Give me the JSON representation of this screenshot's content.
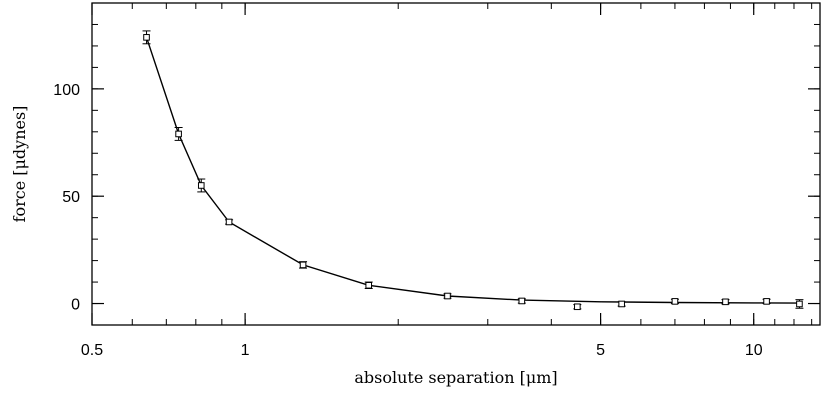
{
  "chart_data": {
    "type": "scatter",
    "title": "",
    "xlabel": "absolute separation [μm]",
    "ylabel": "force [μdynes]",
    "x_scale": "log",
    "xlim": [
      0.5,
      13.5
    ],
    "ylim": [
      -10,
      140
    ],
    "grid": false,
    "legend": "none",
    "colors": {
      "marker": "#000000",
      "line": "#000000"
    },
    "x_ticks": [
      0.5,
      1,
      5,
      10
    ],
    "x_tick_labels": [
      "0.5",
      "1",
      "5",
      "10"
    ],
    "y_ticks": [
      0,
      50,
      100
    ],
    "y_tick_labels": [
      "0",
      "50",
      "100"
    ],
    "series": [
      {
        "marker": "open-square",
        "error_bars": true,
        "points": [
          {
            "x": 0.64,
            "y": 124,
            "err": 3
          },
          {
            "x": 0.74,
            "y": 79,
            "err": 3
          },
          {
            "x": 0.82,
            "y": 55,
            "err": 3
          },
          {
            "x": 0.93,
            "y": 38,
            "err": 1
          },
          {
            "x": 1.3,
            "y": 18,
            "err": 1.5
          },
          {
            "x": 1.75,
            "y": 8.5,
            "err": 1.5
          },
          {
            "x": 2.5,
            "y": 3.5,
            "err": 1
          },
          {
            "x": 3.5,
            "y": 1.2,
            "err": 1
          },
          {
            "x": 4.5,
            "y": -1.5,
            "err": 1
          },
          {
            "x": 5.5,
            "y": -0.2,
            "err": 1
          },
          {
            "x": 7.0,
            "y": 1,
            "err": 1
          },
          {
            "x": 8.8,
            "y": 0.8,
            "err": 1
          },
          {
            "x": 10.6,
            "y": 1,
            "err": 1
          },
          {
            "x": 12.3,
            "y": -0.2,
            "err": 2
          }
        ]
      },
      {
        "type": "line",
        "points": [
          {
            "x": 0.64,
            "y": 124
          },
          {
            "x": 0.74,
            "y": 79
          },
          {
            "x": 0.82,
            "y": 55
          },
          {
            "x": 0.93,
            "y": 38
          },
          {
            "x": 1.3,
            "y": 18
          },
          {
            "x": 1.75,
            "y": 8.5
          },
          {
            "x": 2.5,
            "y": 3.5
          },
          {
            "x": 3.5,
            "y": 1.6
          },
          {
            "x": 5.0,
            "y": 0.8
          },
          {
            "x": 7.0,
            "y": 0.5
          },
          {
            "x": 10.0,
            "y": 0.3
          },
          {
            "x": 12.3,
            "y": 0.2
          }
        ]
      }
    ]
  }
}
